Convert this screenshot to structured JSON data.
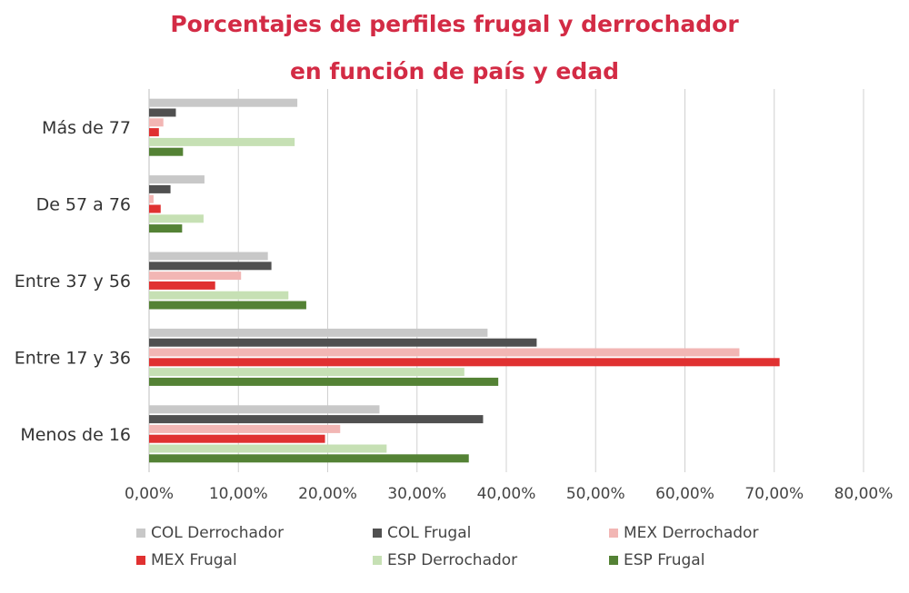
{
  "chart_data": {
    "type": "bar",
    "orientation": "horizontal",
    "title": "Porcentajes de perfiles frugal y derrochador",
    "subtitle": "en función de país y edad",
    "categories": [
      "Más de 77",
      "De 57 a 76",
      "Entre 37 y 56",
      "Entre 17 y 36",
      "Menos de 16"
    ],
    "series": [
      {
        "name": "COL Derrochador",
        "color": "#c8c8c8",
        "values": [
          16.6,
          6.2,
          13.3,
          37.9,
          25.8
        ]
      },
      {
        "name": "COL Frugal",
        "color": "#505050",
        "values": [
          3.0,
          2.4,
          13.7,
          43.4,
          37.4
        ]
      },
      {
        "name": "MEX Derrochador",
        "color": "#f2b6b4",
        "values": [
          1.6,
          0.5,
          10.3,
          66.1,
          21.4
        ]
      },
      {
        "name": "MEX Frugal",
        "color": "#e03131",
        "values": [
          1.1,
          1.3,
          7.4,
          70.6,
          19.7
        ]
      },
      {
        "name": "ESP Derrochador",
        "color": "#c6e0b4",
        "values": [
          16.3,
          6.1,
          15.6,
          35.3,
          26.6
        ]
      },
      {
        "name": "ESP Frugal",
        "color": "#548235",
        "values": [
          3.8,
          3.7,
          17.6,
          39.1,
          35.8
        ]
      }
    ],
    "xticks": [
      "0,00%",
      "10,00%",
      "20,00%",
      "30,00%",
      "40,00%",
      "50,00%",
      "60,00%",
      "70,00%",
      "80,00%"
    ],
    "xlim": [
      0,
      80
    ],
    "grid": true,
    "legend_position": "bottom"
  }
}
